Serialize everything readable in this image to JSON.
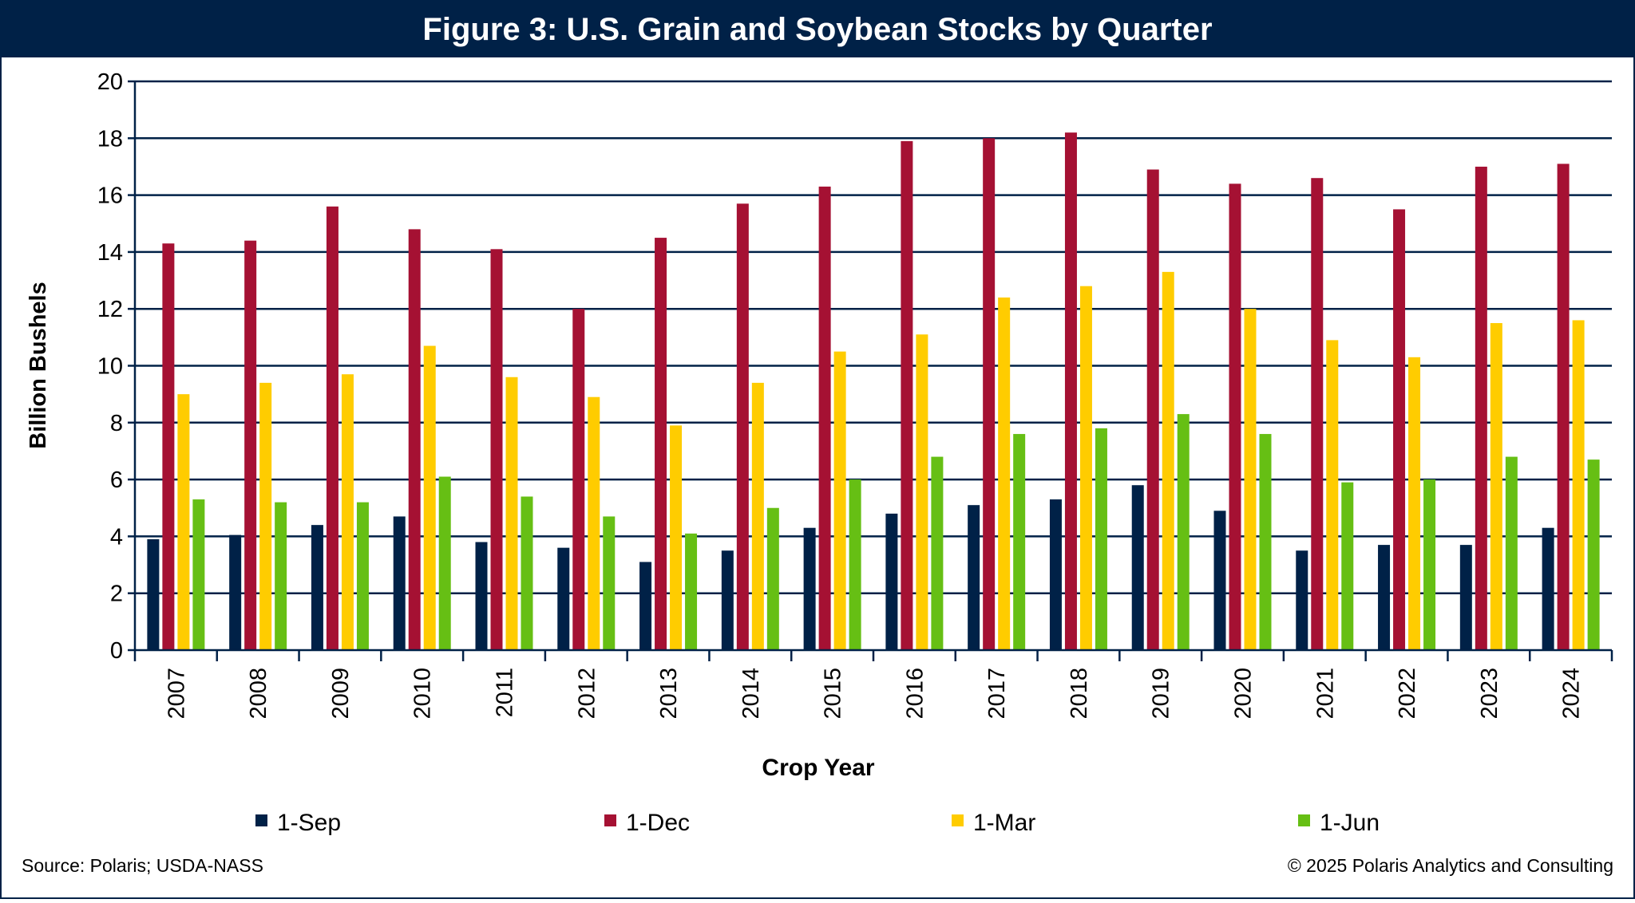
{
  "chart_data": {
    "type": "bar",
    "title": "Figure 3: U.S. Grain and Soybean Stocks by Quarter",
    "xlabel": "Crop Year",
    "ylabel": "Billion Bushels",
    "ylim": [
      0,
      20
    ],
    "yticks": [
      "0",
      "2",
      "4",
      "6",
      "8",
      "10",
      "12",
      "14",
      "16",
      "18",
      "20"
    ],
    "grid": true,
    "legend_position": "bottom",
    "categories": [
      "2007",
      "2008",
      "2009",
      "2010",
      "2011",
      "2012",
      "2013",
      "2014",
      "2015",
      "2016",
      "2017",
      "2018",
      "2019",
      "2020",
      "2021",
      "2022",
      "2023",
      "2024"
    ],
    "series": [
      {
        "name": "1-Sep",
        "color": "#002147",
        "values": [
          3.9,
          4.05,
          4.4,
          4.7,
          3.8,
          3.6,
          3.1,
          3.5,
          4.3,
          4.8,
          5.1,
          5.3,
          5.8,
          4.9,
          3.5,
          3.7,
          3.7,
          4.3
        ]
      },
      {
        "name": "1-Dec",
        "color": "#A51133",
        "values": [
          14.3,
          14.4,
          15.6,
          14.8,
          14.1,
          12.0,
          14.5,
          15.7,
          16.3,
          17.9,
          18.0,
          18.2,
          16.9,
          16.4,
          16.6,
          15.5,
          17.0,
          17.1
        ]
      },
      {
        "name": "1-Mar",
        "color": "#FFCC00",
        "values": [
          9.0,
          9.4,
          9.7,
          10.7,
          9.6,
          8.9,
          7.9,
          9.4,
          10.5,
          11.1,
          12.4,
          12.8,
          13.3,
          12.0,
          10.9,
          10.3,
          11.5,
          11.6
        ]
      },
      {
        "name": "1-Jun",
        "color": "#66BF14",
        "values": [
          5.3,
          5.2,
          5.2,
          6.1,
          5.4,
          4.7,
          4.1,
          5.0,
          6.0,
          6.8,
          7.6,
          7.8,
          8.3,
          7.6,
          5.9,
          6.0,
          6.8,
          6.7
        ]
      }
    ]
  },
  "footer": {
    "source": "Source: Polaris; USDA-NASS",
    "copyright": "© 2025 Polaris Analytics and Consulting"
  },
  "colors": {
    "header_bg": "#002147",
    "grid": "#002147"
  }
}
